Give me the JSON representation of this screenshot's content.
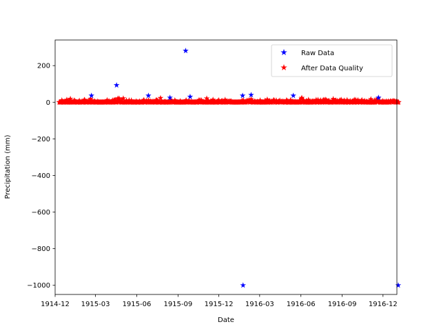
{
  "chart_data": {
    "type": "scatter",
    "title": "",
    "xlabel": "Date",
    "ylabel": "Precipitation (mm)",
    "x_axis_kind": "date",
    "xlim": [
      "1914-12-01",
      "1917-01-01"
    ],
    "ylim": [
      -1050,
      340
    ],
    "x_ticks": [
      "1914-12-01",
      "1915-03-01",
      "1915-06-01",
      "1915-09-01",
      "1915-12-01",
      "1916-03-01",
      "1916-06-01",
      "1916-09-01",
      "1916-12-01"
    ],
    "x_tick_labels": [
      "1914-12",
      "1915-03",
      "1915-06",
      "1915-09",
      "1915-12",
      "1916-03",
      "1916-06",
      "1916-09",
      "1916-12"
    ],
    "y_ticks": [
      200,
      0,
      -200,
      -400,
      -600,
      -800,
      -1000
    ],
    "y_tick_labels": [
      "200",
      "0",
      "−200",
      "−400",
      "−600",
      "−800",
      "−1000"
    ],
    "legend_position": "upper right",
    "marker": "star",
    "series": [
      {
        "name": "Raw Data",
        "color": "#0000ff",
        "points": [
          {
            "x": "1915-02-20",
            "y": 36
          },
          {
            "x": "1915-04-17",
            "y": 93
          },
          {
            "x": "1915-06-27",
            "y": 36
          },
          {
            "x": "1915-08-14",
            "y": 25
          },
          {
            "x": "1915-09-18",
            "y": 281
          },
          {
            "x": "1915-09-28",
            "y": 30
          },
          {
            "x": "1916-01-24",
            "y": -1000
          },
          {
            "x": "1916-01-23",
            "y": 36
          },
          {
            "x": "1916-02-11",
            "y": 40
          },
          {
            "x": "1916-05-15",
            "y": 36
          },
          {
            "x": "1916-11-21",
            "y": 25
          },
          {
            "x": "1917-01-04",
            "y": -1000
          }
        ],
        "baseline_note": "",
        "range": [
          "1914-12-10",
          "1917-01-05"
        ]
      },
      {
        "name": "After Data Quality",
        "color": "#ff0000",
        "range": [
          "1914-12-10",
          "1917-01-05"
        ],
        "value_band": [
          0,
          25
        ]
      }
    ]
  }
}
